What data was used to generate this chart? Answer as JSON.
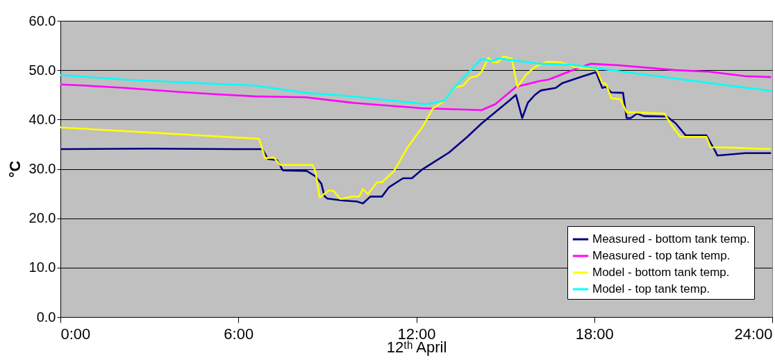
{
  "chart_data": {
    "type": "line",
    "xlabel": "12ᵗʰ April",
    "ylabel": "°C",
    "xlim": [
      0,
      24
    ],
    "xticks": [
      {
        "value": 0,
        "label": "0:00"
      },
      {
        "value": 6,
        "label": "6:00"
      },
      {
        "value": 12,
        "label": "12:00"
      },
      {
        "value": 18,
        "label": "18:00"
      },
      {
        "value": 24,
        "label": "24:00"
      }
    ],
    "ylim": [
      0,
      60
    ],
    "yticks": [
      {
        "value": 0,
        "label": "0.0"
      },
      {
        "value": 10,
        "label": "10.0"
      },
      {
        "value": 20,
        "label": "20.0"
      },
      {
        "value": 30,
        "label": "30.0"
      },
      {
        "value": 40,
        "label": "40.0"
      },
      {
        "value": 50,
        "label": "50.0"
      },
      {
        "value": 60,
        "label": "60.0"
      }
    ],
    "grid": "y",
    "legend": "bottom right",
    "marker": "none",
    "line_style": "solid",
    "series": [
      {
        "name": "Measured - bottom tank temp.",
        "color": "#000080",
        "x": [
          0,
          3,
          6,
          6.8,
          7.0,
          7.3,
          7.5,
          8.3,
          8.6,
          8.8,
          8.9,
          9.0,
          9.5,
          10.0,
          10.2,
          10.45,
          10.84,
          11.08,
          11.55,
          11.85,
          12.18,
          12.65,
          13.1,
          13.7,
          14.2,
          14.66,
          15.13,
          15.36,
          15.57,
          15.76,
          16.0,
          16.2,
          16.7,
          16.93,
          17.63,
          18.06,
          18.27,
          18.4,
          18.57,
          18.97,
          19.09,
          19.23,
          19.44,
          19.67,
          20.45,
          20.75,
          21.08,
          21.78,
          22.08,
          22.15,
          23.09,
          23.96
        ],
        "values": [
          34.0,
          34.1,
          34.0,
          34.0,
          32.0,
          31.8,
          29.7,
          29.6,
          28.5,
          27.0,
          24.5,
          24.0,
          23.6,
          23.4,
          23.0,
          24.4,
          24.4,
          26.3,
          28.1,
          28.1,
          29.8,
          31.6,
          33.3,
          36.4,
          39.2,
          41.5,
          43.8,
          45.0,
          40.3,
          43.4,
          45.0,
          45.9,
          46.4,
          47.4,
          48.8,
          49.6,
          46.4,
          46.6,
          45.5,
          45.4,
          40.3,
          40.3,
          41.2,
          40.7,
          40.6,
          39.2,
          36.8,
          36.8,
          33.6,
          32.7,
          33.2,
          33.2
        ]
      },
      {
        "name": "Measured - top tank temp.",
        "color": "#ff00ff",
        "x": [
          0,
          0.77,
          2.18,
          3.75,
          5.3,
          6.56,
          8.27,
          9.84,
          12.18,
          14.2,
          14.66,
          15.36,
          16.16,
          16.46,
          17.4,
          17.87,
          18.8,
          20.75,
          21.85,
          23.09,
          23.96
        ],
        "values": [
          47.1,
          46.9,
          46.4,
          45.7,
          45.1,
          44.7,
          44.5,
          43.4,
          42.3,
          41.9,
          43.1,
          46.6,
          47.8,
          48.1,
          50.3,
          51.3,
          51.0,
          50.0,
          49.7,
          48.8,
          48.6
        ]
      },
      {
        "name": "Model - bottom tank temp.",
        "color": "#ffff00",
        "x": [
          0,
          6.7,
          6.9,
          7.2,
          7.4,
          8.5,
          8.6,
          8.74,
          9.04,
          9.2,
          9.44,
          9.84,
          10.07,
          10.2,
          10.37,
          10.68,
          10.84,
          11.24,
          11.7,
          12.25,
          12.55,
          12.95,
          13.26,
          13.58,
          13.82,
          14.05,
          14.2,
          14.43,
          14.59,
          14.75,
          14.94,
          15.22,
          15.41,
          15.69,
          16.0,
          16.4,
          16.86,
          17.4,
          18.06,
          18.27,
          18.4,
          18.57,
          18.88,
          19.09,
          20.37,
          20.6,
          20.9,
          21.78,
          21.92,
          22.62,
          23.96
        ],
        "values": [
          38.4,
          36.1,
          32.2,
          32.3,
          30.8,
          30.8,
          29.5,
          24.2,
          25.6,
          25.6,
          23.9,
          24.4,
          24.4,
          25.9,
          24.9,
          27.3,
          27.3,
          29.5,
          34.3,
          38.9,
          42.2,
          43.8,
          46.4,
          46.9,
          48.5,
          48.8,
          49.7,
          52.5,
          51.6,
          51.6,
          52.8,
          52.3,
          46.6,
          49.0,
          50.7,
          51.7,
          51.6,
          50.6,
          50.3,
          47.4,
          47.2,
          44.3,
          44.1,
          41.5,
          41.2,
          38.9,
          36.5,
          36.5,
          34.4,
          34.3,
          34.0
        ]
      },
      {
        "name": "Model - top tank temp.",
        "color": "#00ffff",
        "x": [
          0,
          2.18,
          4.52,
          6.56,
          8.27,
          9.67,
          12.32,
          12.95,
          13.26,
          13.72,
          14.2,
          14.52,
          14.75,
          16.16,
          17.24,
          19.2,
          23.96
        ],
        "values": [
          49.0,
          48.1,
          47.4,
          46.9,
          45.4,
          44.8,
          43.1,
          43.8,
          46.4,
          49.3,
          52.3,
          51.8,
          52.4,
          51.3,
          51.1,
          49.5,
          45.8
        ]
      }
    ]
  }
}
